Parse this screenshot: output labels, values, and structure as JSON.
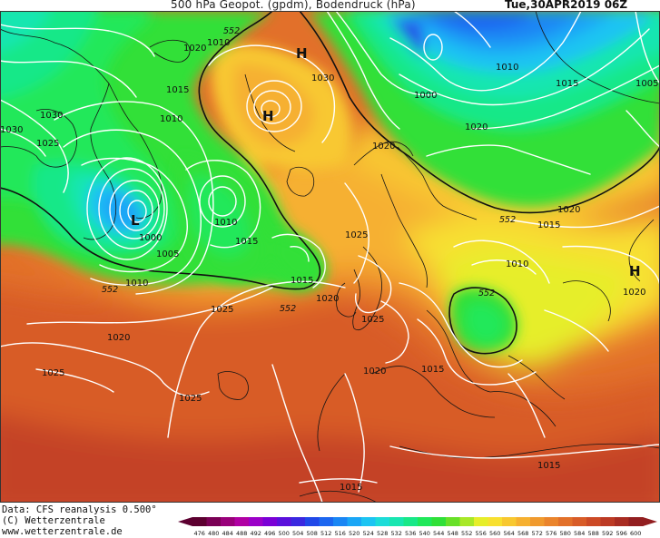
{
  "header": {
    "title": "500 hPa Geopot. (gpdm), Bodendruck (hPa)",
    "valid_time": "Tue,30APR2019 06Z"
  },
  "footer": {
    "source": "Data: CFS reanalysis 0.500°",
    "copyright": "(C) Wetterzentrale",
    "website": "www.wetterzentrale.de"
  },
  "pressure_centers": [
    {
      "type": "L",
      "label": "L"
    },
    {
      "type": "H",
      "label": "H"
    },
    {
      "type": "H",
      "label": "H"
    },
    {
      "type": "H",
      "label": "H"
    }
  ],
  "isobar_labels": [
    "1030",
    "1020",
    "1015",
    "1010",
    "1030",
    "1025",
    "1010",
    "1005",
    "1000",
    "1010",
    "1015",
    "1010",
    "1015",
    "1020",
    "1030",
    "1000",
    "1020",
    "1010",
    "1015",
    "1005",
    "1020",
    "1025",
    "1020",
    "1015",
    "1010",
    "1020",
    "1025",
    "1020",
    "1025",
    "1020",
    "1015",
    "1015",
    "1015",
    "1025",
    "1025"
  ],
  "geopotential_labels": [
    "552",
    "552",
    "552",
    "552",
    "552"
  ],
  "legend": {
    "values": [
      "476",
      "480",
      "484",
      "488",
      "492",
      "496",
      "500",
      "504",
      "508",
      "512",
      "516",
      "520",
      "524",
      "528",
      "532",
      "536",
      "540",
      "544",
      "548",
      "552",
      "556",
      "560",
      "564",
      "568",
      "572",
      "576",
      "580",
      "584",
      "588",
      "592",
      "596",
      "600"
    ],
    "colors": [
      "#5c0030",
      "#7a0055",
      "#99007a",
      "#b000a3",
      "#9b00c8",
      "#7a00d6",
      "#5a10dc",
      "#3a28e0",
      "#2048e8",
      "#1c66f0",
      "#1a86f4",
      "#1aa6f6",
      "#1cc4f2",
      "#1cdcd8",
      "#18e6b0",
      "#18e888",
      "#20e85a",
      "#30e038",
      "#68e028",
      "#a8e828",
      "#e6ee2a",
      "#f8e030",
      "#f8c830",
      "#f6b030",
      "#f09a2e",
      "#ea842c",
      "#e2702a",
      "#d85c28",
      "#cc4a26",
      "#bc3a24",
      "#a82c22",
      "#921e20"
    ]
  }
}
